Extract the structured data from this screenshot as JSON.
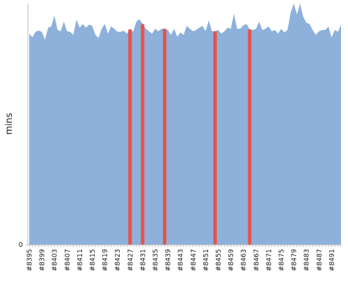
{
  "chart_data": {
    "type": "area",
    "y_label": "mins",
    "categories": [
      "#8395",
      null,
      null,
      null,
      "#8399",
      null,
      null,
      null,
      "#8403",
      null,
      null,
      null,
      "#8407",
      null,
      null,
      null,
      "#8411",
      null,
      null,
      null,
      "#8415",
      null,
      null,
      null,
      "#8419",
      null,
      null,
      null,
      "#8423",
      null,
      null,
      null,
      "#8427",
      null,
      null,
      null,
      "#8431",
      null,
      null,
      null,
      "#8435",
      null,
      null,
      null,
      "#8439",
      null,
      null,
      null,
      "#8443",
      null,
      null,
      null,
      "#8447",
      null,
      null,
      null,
      "#8451",
      null,
      null,
      null,
      "#8455",
      null,
      null,
      null,
      "#8459",
      null,
      null,
      null,
      "#8463",
      null,
      null,
      null,
      "#8467",
      null,
      null,
      null,
      "#8471",
      null,
      null,
      null,
      "#8475",
      null,
      null,
      null,
      "#8479",
      null,
      null,
      null,
      "#8483",
      null,
      null,
      null,
      "#8487",
      null,
      null,
      null,
      "#8491",
      null,
      null,
      null
    ],
    "values": [
      35.0,
      34.4,
      35.3,
      35.5,
      35.3,
      34.0,
      36.0,
      36.2,
      38.0,
      35.6,
      35.4,
      37.0,
      35.4,
      35.3,
      34.8,
      37.3,
      36.0,
      36.6,
      36.0,
      36.5,
      36.3,
      34.8,
      34.3,
      35.8,
      36.6,
      35.0,
      36.2,
      35.8,
      35.3,
      35.3,
      35.5,
      35.0,
      35.7,
      35.3,
      37.0,
      37.4,
      36.6,
      35.8,
      35.4,
      35.0,
      35.8,
      35.4,
      35.8,
      35.8,
      35.6,
      34.8,
      35.8,
      34.5,
      35.2,
      34.8,
      36.3,
      35.8,
      35.4,
      35.6,
      36.0,
      36.3,
      35.4,
      37.2,
      35.4,
      35.4,
      35.6,
      35.0,
      35.4,
      36.0,
      35.8,
      38.3,
      35.8,
      35.8,
      36.4,
      36.6,
      35.7,
      35.6,
      35.8,
      37.0,
      35.6,
      35.8,
      36.2,
      35.4,
      35.6,
      35.0,
      35.8,
      35.2,
      35.6,
      38.5,
      40,
      38.2,
      40,
      37.8,
      36.8,
      36.6,
      35.6,
      34.8,
      35.4,
      35.6,
      35.6,
      36.2,
      34.4,
      35.6,
      35.3,
      36.5
    ],
    "color": "#8eb1db",
    "highlight": {
      "color": "#e8524a",
      "values": [
        null,
        null,
        null,
        null,
        null,
        null,
        null,
        null,
        null,
        null,
        null,
        null,
        null,
        null,
        null,
        null,
        null,
        null,
        null,
        null,
        null,
        null,
        null,
        null,
        null,
        null,
        null,
        null,
        null,
        null,
        null,
        null,
        35.7,
        null,
        null,
        null,
        36.6,
        null,
        null,
        null,
        null,
        null,
        null,
        35.8,
        null,
        null,
        null,
        null,
        null,
        null,
        null,
        null,
        null,
        null,
        null,
        null,
        null,
        null,
        null,
        35.4,
        null,
        null,
        null,
        null,
        null,
        null,
        null,
        null,
        null,
        null,
        35.7,
        null,
        null,
        null,
        null,
        null,
        null,
        null,
        null,
        null,
        null,
        null,
        null,
        null,
        null,
        null,
        null,
        null,
        null,
        null,
        null,
        null,
        null,
        null,
        null,
        null,
        null,
        null,
        null,
        null
      ]
    },
    "ylim": [
      0,
      40
    ],
    "yticks": [
      0
    ]
  }
}
